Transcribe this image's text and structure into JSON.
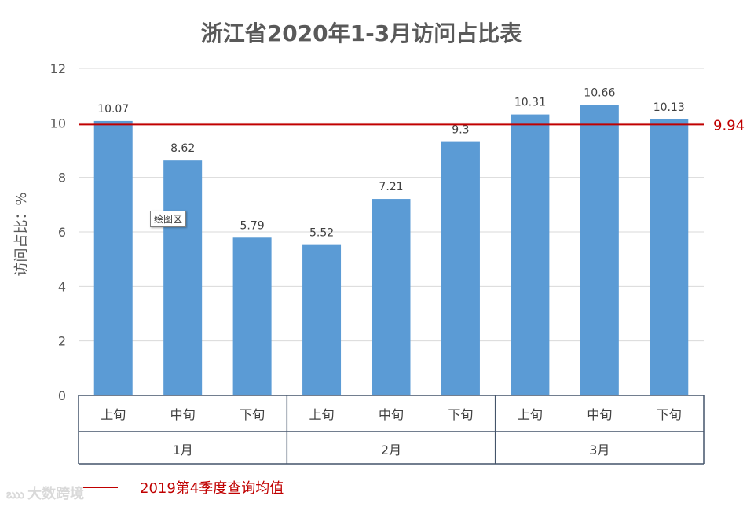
{
  "chart_data": {
    "type": "bar",
    "title": "浙江省2020年1-3月访问占比表",
    "ylabel": "访问占比：%",
    "xlabel": "",
    "ylim": [
      0,
      12
    ],
    "yticks": [
      0,
      2,
      4,
      6,
      8,
      10,
      12
    ],
    "grid": true,
    "categories": [
      "上旬",
      "中旬",
      "下旬",
      "上旬",
      "中旬",
      "下旬",
      "上旬",
      "中旬",
      "下旬"
    ],
    "groups": [
      {
        "label": "1月",
        "count": 3
      },
      {
        "label": "2月",
        "count": 3
      },
      {
        "label": "3月",
        "count": 3
      }
    ],
    "values": [
      10.07,
      8.62,
      5.79,
      5.52,
      7.21,
      9.3,
      10.31,
      10.66,
      10.13
    ],
    "value_labels": [
      "10.07",
      "8.62",
      "5.79",
      "5.52",
      "7.21",
      "9.3",
      "10.31",
      "10.66",
      "10.13"
    ],
    "reference_line": {
      "value": 9.94,
      "label": "9.94",
      "name": "2019第4季度查询均值",
      "color": "#c00000"
    },
    "bar_color": "#5b9bd5",
    "legend_position": "bottom-left"
  },
  "tooltip": {
    "label": "绘图区"
  },
  "watermark": {
    "text": "大数跨境"
  }
}
